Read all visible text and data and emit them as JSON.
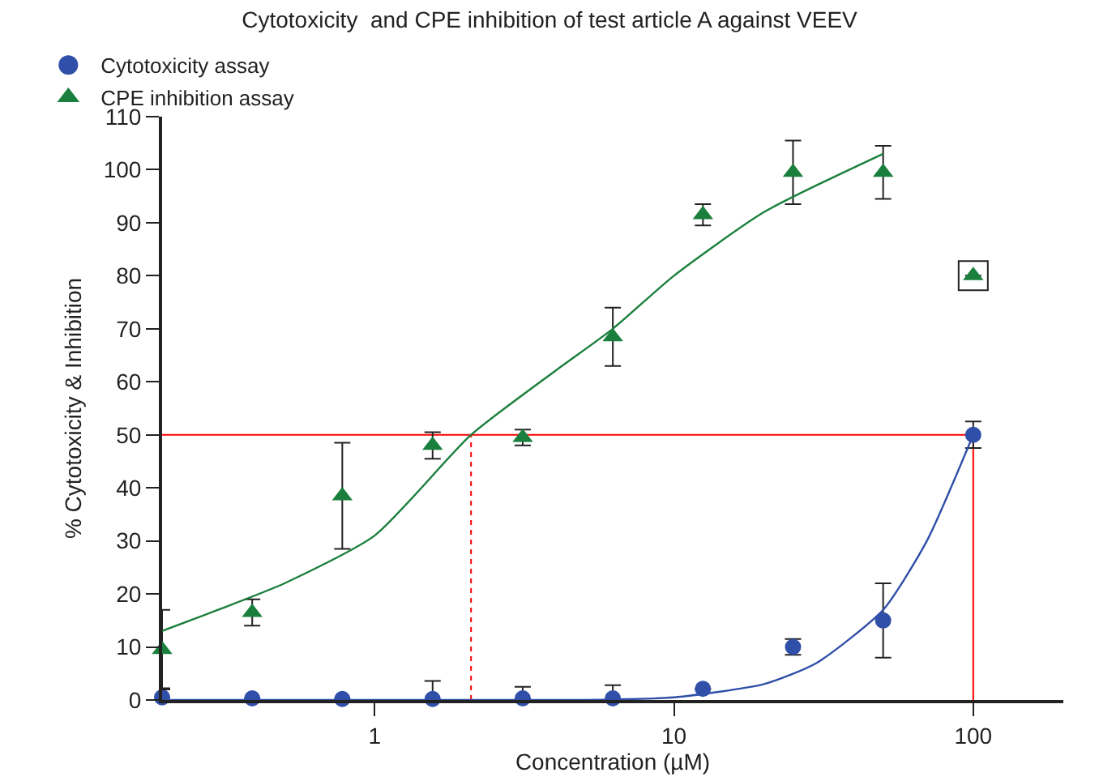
{
  "chart_data": {
    "type": "scatter",
    "title": "Cytotoxicity  and CPE inhibition of test article A against VEEV",
    "xlabel": "Concentration (µM)",
    "ylabel": "% Cytotoxicity & Inhibition",
    "log": "x",
    "xlim": [
      0.195,
      200
    ],
    "xticks": [
      1,
      10,
      100
    ],
    "ylim": [
      0,
      110
    ],
    "yticks": [
      0,
      10,
      20,
      30,
      40,
      50,
      60,
      70,
      80,
      90,
      100,
      110
    ],
    "grid": false,
    "legend": "top left",
    "series": [
      {
        "type": "scatter",
        "marker": "square",
        "color": "#222222",
        "x": [
          100
        ],
        "values": [
          80
        ]
      },
      {
        "name": "Cytotoxicity assay",
        "marker": "circle",
        "color": "#2f4fa8",
        "x": [
          0.195,
          0.39,
          0.78,
          1.5625,
          3.125,
          6.25,
          12.5,
          25,
          50,
          100
        ],
        "values": [
          0.5,
          0.3,
          0.2,
          0.2,
          0.3,
          0.3,
          2.1,
          10,
          15,
          50
        ],
        "errors": [
          [
            0.5,
            2.2
          ],
          null,
          null,
          3.4,
          [
            0.3,
            2.5
          ],
          2.5,
          null,
          1.5,
          7,
          2.5
        ]
      },
      {
        "name": "CPE inhibition assay",
        "marker": "triangle",
        "color": "#1a7f3c",
        "x": [
          0.195,
          0.39,
          0.78,
          1.5625,
          3.125,
          6.25,
          12.5,
          25,
          50,
          100
        ],
        "values": [
          9.5,
          16.5,
          38.5,
          48,
          49.5,
          68.5,
          91.5,
          99.5,
          99.5,
          80
        ],
        "errors": [
          7.5,
          2.5,
          10,
          2.5,
          1.5,
          5.5,
          2,
          6,
          5,
          null
        ]
      },
      {
        "type": "line",
        "color": "#1a7f3c",
        "x": [
          0.195,
          0.3,
          0.5,
          1,
          2.1,
          4,
          6.25,
          10,
          20,
          50
        ],
        "values": [
          13,
          17,
          22,
          31,
          50,
          62,
          70,
          80,
          92,
          103
        ]
      },
      {
        "type": "line",
        "color": "#2f4fa8",
        "x": [
          0.195,
          5,
          10,
          20,
          30,
          50,
          70,
          100
        ],
        "values": [
          0,
          0,
          0.5,
          3,
          7,
          17,
          30,
          50
        ]
      }
    ],
    "ref_lines": [
      {
        "axis": "y",
        "value": 50,
        "color": "#ff0000",
        "line_style": "solid"
      },
      {
        "axis": "x",
        "value": 2.1,
        "color": "#ff0000",
        "line_style": "dotted"
      },
      {
        "axis": "x",
        "value": 100,
        "color": "#ff0000",
        "line_style": "solid"
      }
    ]
  }
}
